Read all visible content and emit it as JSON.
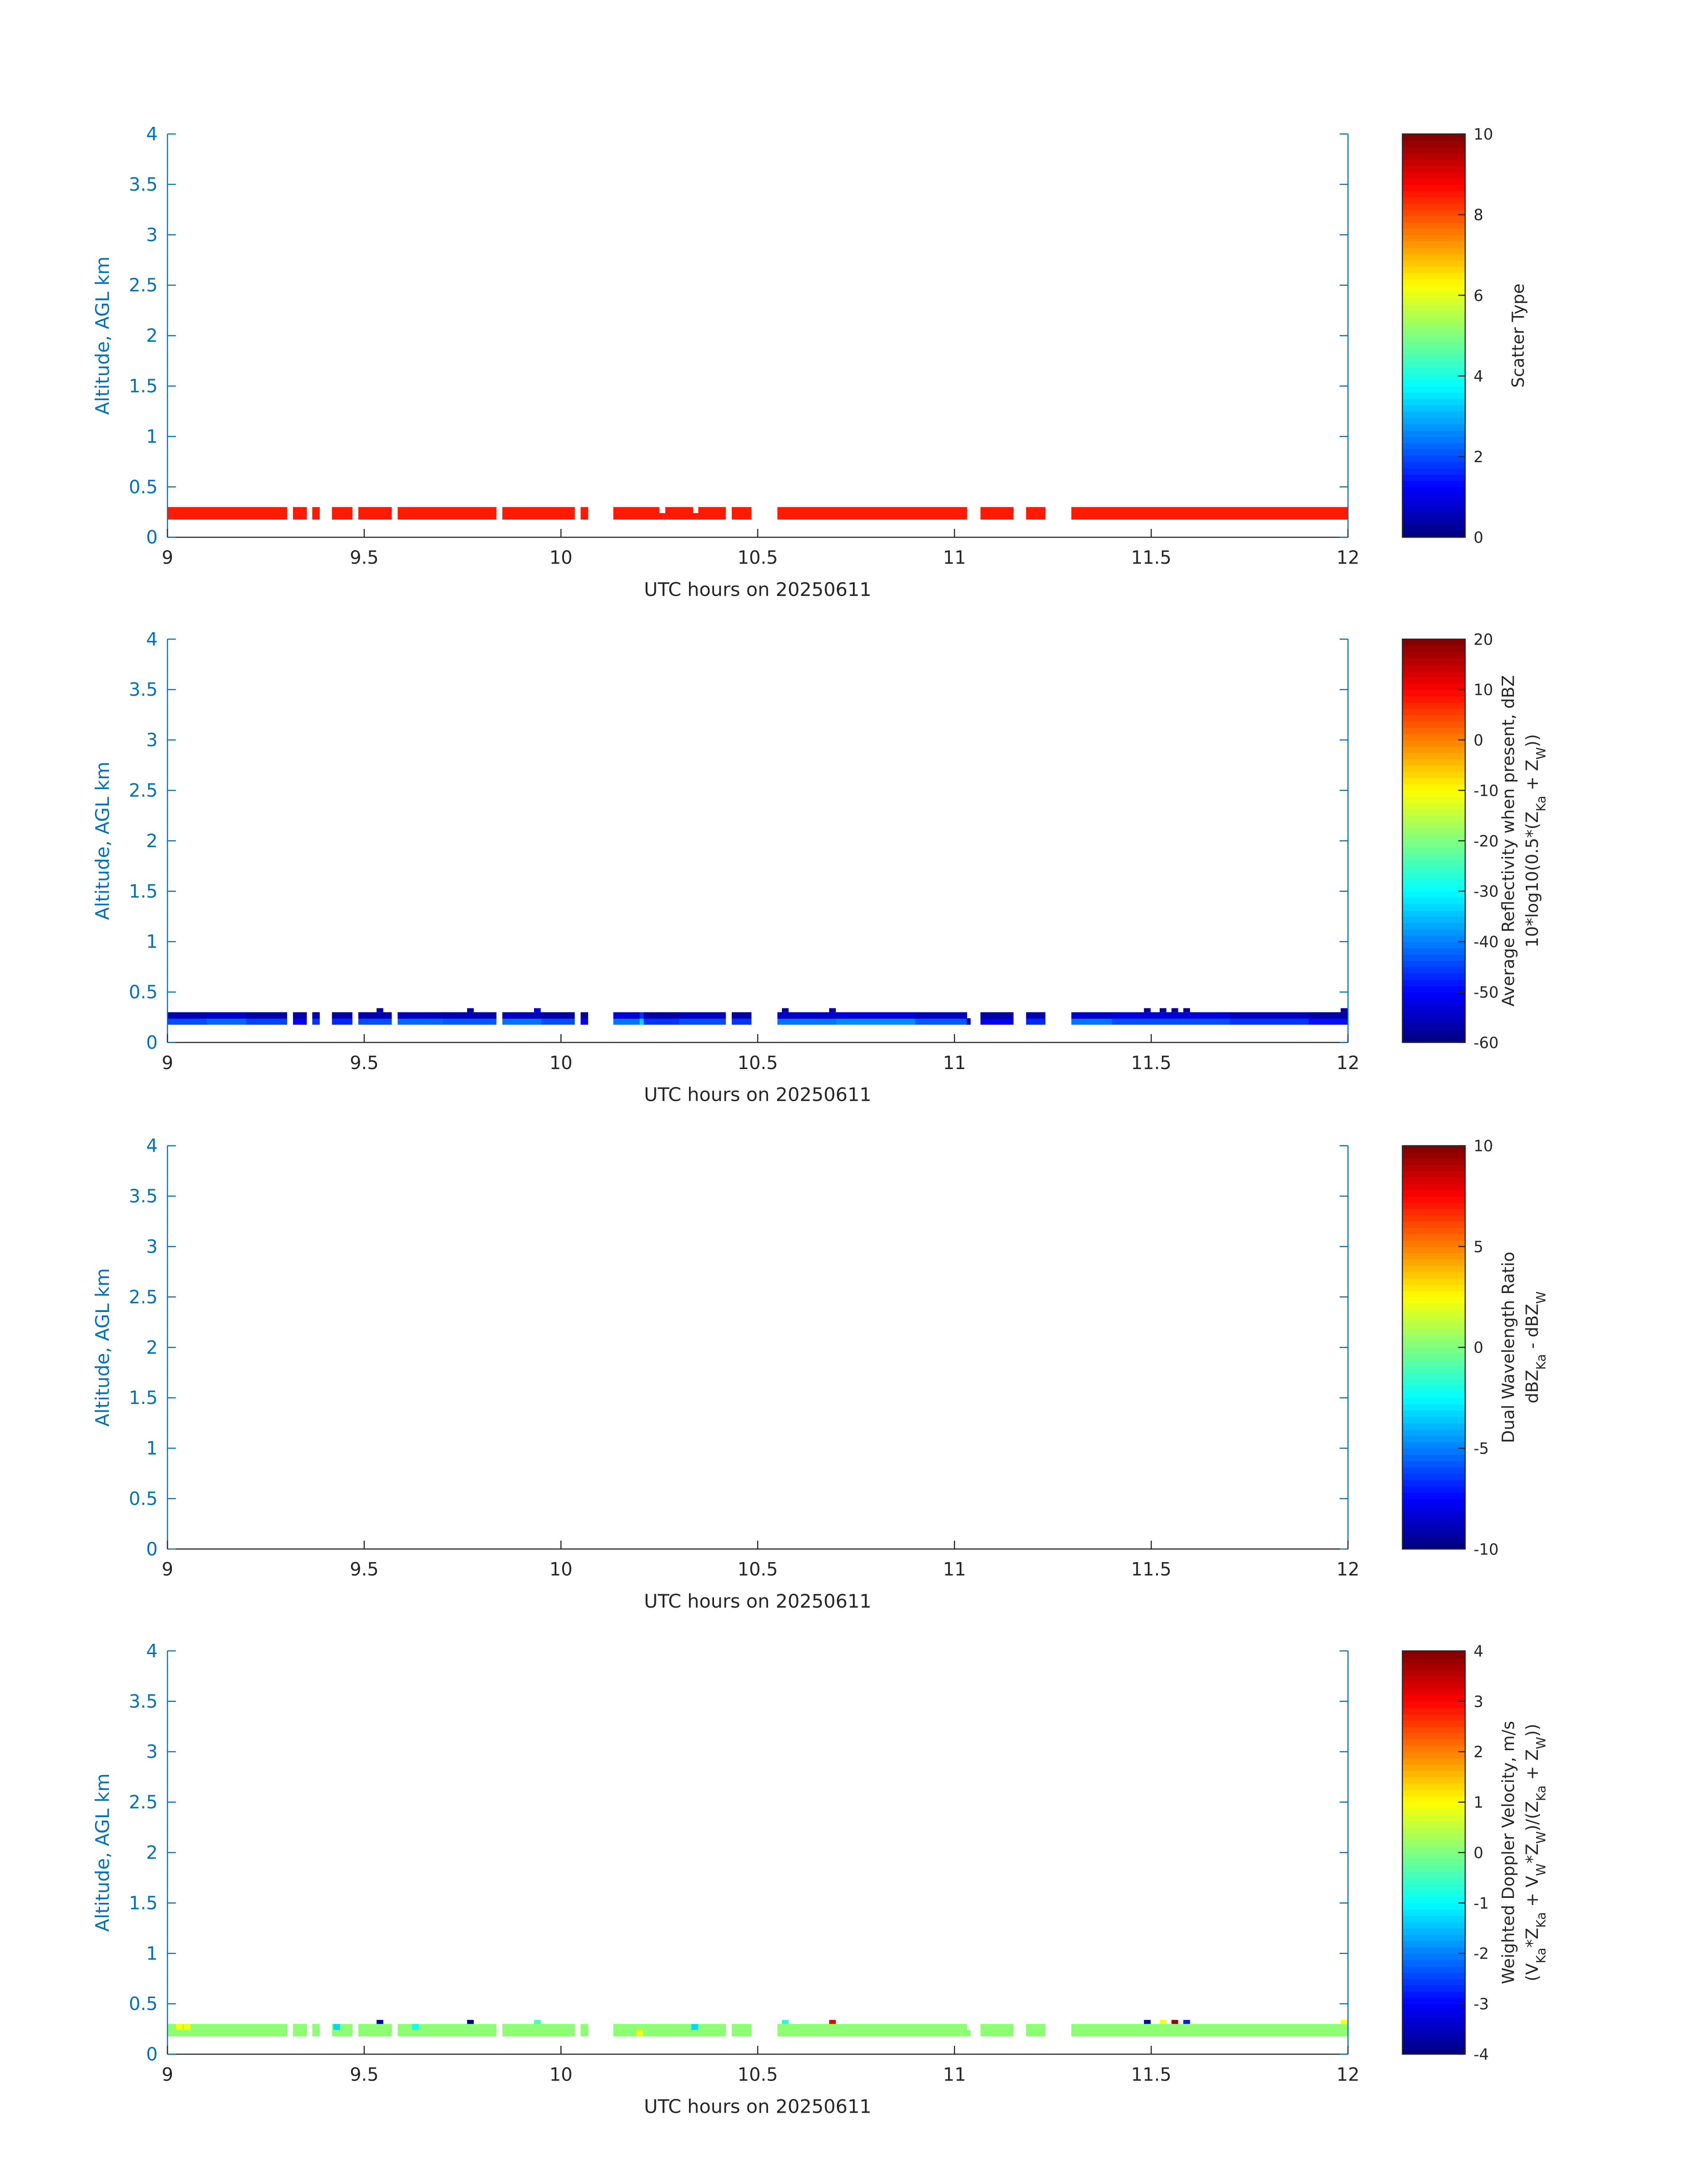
{
  "colors": {
    "y_axis": "#0072bd",
    "x_axis": "#262626"
  },
  "chart_data": [
    {
      "type": "heatmap",
      "title": "",
      "xlabel": "UTC hours on 20250611",
      "ylabel": "Altitude, AGL km",
      "xlim": [
        9,
        12
      ],
      "ylim": [
        0,
        4
      ],
      "xticks": [
        "9",
        "9.5",
        "10",
        "10.5",
        "11",
        "11.5",
        "12"
      ],
      "yticks": [
        "0",
        "0.5",
        "1",
        "1.5",
        "2",
        "2.5",
        "3",
        "3.5",
        "4"
      ],
      "altitude_bins_km": [
        [
          0.18,
          0.24
        ],
        [
          0.24,
          0.3
        ],
        [
          0.3,
          0.34
        ]
      ],
      "colorbar": {
        "clim": [
          0,
          10
        ],
        "ticks": [
          "0",
          "2",
          "4",
          "6",
          "8",
          "10"
        ],
        "label_lines": [
          [
            {
              "t": "Scatter Type"
            }
          ]
        ]
      },
      "segments": [
        [
          9.0,
          9.303,
          8.5,
          8.5
        ],
        [
          9.319,
          9.353,
          8.5,
          8.5
        ],
        [
          9.368,
          9.386,
          8.5,
          8.5
        ],
        [
          9.418,
          9.469,
          8.5,
          8.5
        ],
        [
          9.485,
          9.569,
          8.5,
          8.5
        ],
        [
          9.585,
          9.835,
          8.5,
          8.5
        ],
        [
          9.851,
          10.034,
          8.5,
          8.5
        ],
        [
          10.05,
          10.068,
          8.5,
          8.5
        ],
        [
          10.133,
          10.249,
          8.5,
          8.5
        ],
        [
          10.249,
          10.265,
          8.5,
          null
        ],
        [
          10.265,
          10.335,
          8.5,
          8.5
        ],
        [
          10.335,
          10.349,
          8.5,
          null
        ],
        [
          10.349,
          10.418,
          8.5,
          8.5
        ],
        [
          10.434,
          10.483,
          8.5,
          8.5
        ],
        [
          10.55,
          11.031,
          8.5,
          8.5
        ],
        [
          11.066,
          11.149,
          8.5,
          8.5
        ],
        [
          11.182,
          11.23,
          8.5,
          8.5
        ],
        [
          11.297,
          12.0,
          8.5,
          8.5
        ]
      ],
      "points": []
    },
    {
      "type": "heatmap",
      "xlabel": "UTC hours on 20250611",
      "ylabel": "Altitude, AGL km",
      "xlim": [
        9,
        12
      ],
      "ylim": [
        0,
        4
      ],
      "xticks": [
        "9",
        "9.5",
        "10",
        "10.5",
        "11",
        "11.5",
        "12"
      ],
      "yticks": [
        "0",
        "0.5",
        "1",
        "1.5",
        "2",
        "2.5",
        "3",
        "3.5",
        "4"
      ],
      "altitude_bins_km": [
        [
          0.18,
          0.24
        ],
        [
          0.24,
          0.3
        ],
        [
          0.3,
          0.34
        ]
      ],
      "colorbar": {
        "clim": [
          -60,
          20
        ],
        "ticks": [
          "-60",
          "-50",
          "-40",
          "-30",
          "-20",
          "-10",
          "0",
          "10",
          "20"
        ],
        "label_lines": [
          [
            {
              "t": "Average Reflectivity when present, dBZ"
            }
          ],
          [
            {
              "t": "10*log10(0.5*(Z"
            },
            {
              "t": "Ka",
              "sub": true
            },
            {
              "t": " + Z"
            },
            {
              "t": "W",
              "sub": true
            },
            {
              "t": "))"
            }
          ]
        ]
      },
      "segments": [
        [
          9.0,
          9.1,
          -44,
          -56
        ],
        [
          9.1,
          9.2,
          -42,
          -54
        ],
        [
          9.2,
          9.303,
          -45,
          -57
        ],
        [
          9.319,
          9.353,
          -50,
          -57
        ],
        [
          9.368,
          9.386,
          -46,
          -56
        ],
        [
          9.418,
          9.469,
          -47,
          -57
        ],
        [
          9.485,
          9.569,
          -44,
          -56
        ],
        [
          9.585,
          9.7,
          -42,
          -55
        ],
        [
          9.7,
          9.835,
          -43,
          -56
        ],
        [
          9.851,
          9.95,
          -41,
          -55
        ],
        [
          9.95,
          10.034,
          -44,
          -57
        ],
        [
          10.05,
          10.068,
          -50,
          -58
        ],
        [
          10.133,
          10.2,
          -41,
          -53
        ],
        [
          10.2,
          10.21,
          -33,
          -46
        ],
        [
          10.21,
          10.3,
          -46,
          -57
        ],
        [
          10.3,
          10.418,
          -44,
          -55
        ],
        [
          10.434,
          10.483,
          -46,
          -57
        ],
        [
          10.55,
          10.7,
          -41,
          -54
        ],
        [
          10.7,
          10.9,
          -39,
          -53
        ],
        [
          10.9,
          11.031,
          -43,
          -55
        ],
        [
          11.031,
          11.04,
          -56,
          null
        ],
        [
          11.066,
          11.149,
          -51,
          -57
        ],
        [
          11.182,
          11.23,
          -47,
          -56
        ],
        [
          11.297,
          11.4,
          -41,
          -54
        ],
        [
          11.4,
          11.7,
          -44,
          -53
        ],
        [
          11.7,
          11.9,
          -46,
          -55
        ],
        [
          11.9,
          12.0,
          -49,
          -57
        ]
      ],
      "points": [
        [
          9.54,
          2,
          -57
        ],
        [
          9.77,
          2,
          -57
        ],
        [
          9.94,
          2,
          -53
        ],
        [
          10.57,
          2,
          -58
        ],
        [
          10.69,
          2,
          -57
        ],
        [
          11.49,
          2,
          -58
        ],
        [
          11.53,
          2,
          -58
        ],
        [
          11.56,
          2,
          -58
        ],
        [
          11.59,
          2,
          -58
        ],
        [
          11.99,
          2,
          -58
        ]
      ]
    },
    {
      "type": "heatmap",
      "xlabel": "UTC hours on 20250611",
      "ylabel": "Altitude, AGL km",
      "xlim": [
        9,
        12
      ],
      "ylim": [
        0,
        4
      ],
      "xticks": [
        "9",
        "9.5",
        "10",
        "10.5",
        "11",
        "11.5",
        "12"
      ],
      "yticks": [
        "0",
        "0.5",
        "1",
        "1.5",
        "2",
        "2.5",
        "3",
        "3.5",
        "4"
      ],
      "altitude_bins_km": [
        [
          0.18,
          0.24
        ],
        [
          0.24,
          0.3
        ],
        [
          0.3,
          0.34
        ]
      ],
      "colorbar": {
        "clim": [
          -10,
          10
        ],
        "ticks": [
          "-10",
          "-5",
          "0",
          "5",
          "10"
        ],
        "label_lines": [
          [
            {
              "t": "Dual Wavelength Ratio"
            }
          ],
          [
            {
              "t": "dBZ"
            },
            {
              "t": "Ka",
              "sub": true
            },
            {
              "t": " - dBZ"
            },
            {
              "t": "W",
              "sub": true
            }
          ]
        ]
      },
      "segments": [],
      "points": []
    },
    {
      "type": "heatmap",
      "xlabel": "UTC hours on 20250611",
      "ylabel": "Altitude, AGL km",
      "xlim": [
        9,
        12
      ],
      "ylim": [
        0,
        4
      ],
      "xticks": [
        "9",
        "9.5",
        "10",
        "10.5",
        "11",
        "11.5",
        "12"
      ],
      "yticks": [
        "0",
        "0.5",
        "1",
        "1.5",
        "2",
        "2.5",
        "3",
        "3.5",
        "4"
      ],
      "altitude_bins_km": [
        [
          0.18,
          0.24
        ],
        [
          0.24,
          0.3
        ],
        [
          0.3,
          0.34
        ]
      ],
      "colorbar": {
        "clim": [
          -4,
          4
        ],
        "ticks": [
          "-4",
          "-3",
          "-2",
          "-1",
          "0",
          "1",
          "2",
          "3",
          "4"
        ],
        "label_lines": [
          [
            {
              "t": "Weighted Doppler Velocity, m/s"
            }
          ],
          [
            {
              "t": "(V"
            },
            {
              "t": "Ka",
              "sub": true
            },
            {
              "t": "*Z"
            },
            {
              "t": "Ka",
              "sub": true
            },
            {
              "t": " + V"
            },
            {
              "t": "W",
              "sub": true
            },
            {
              "t": "*Z"
            },
            {
              "t": "W",
              "sub": true
            },
            {
              "t": ")/(Z"
            },
            {
              "t": "Ka",
              "sub": true
            },
            {
              "t": " + Z"
            },
            {
              "t": "W",
              "sub": true
            },
            {
              "t": "))"
            }
          ]
        ]
      },
      "segments": [
        [
          9.0,
          9.303,
          0.1,
          0.1
        ],
        [
          9.319,
          9.353,
          0.1,
          0.1
        ],
        [
          9.368,
          9.386,
          0.1,
          0.1
        ],
        [
          9.418,
          9.469,
          0.1,
          0.1
        ],
        [
          9.485,
          9.569,
          0.1,
          0.1
        ],
        [
          9.585,
          9.835,
          0.1,
          0.1
        ],
        [
          9.851,
          10.034,
          0.1,
          0.1
        ],
        [
          10.05,
          10.068,
          0.1,
          0.1
        ],
        [
          10.133,
          10.418,
          0.1,
          0.1
        ],
        [
          10.434,
          10.483,
          0.1,
          0.1
        ],
        [
          10.55,
          11.031,
          0.1,
          0.1
        ],
        [
          11.031,
          11.04,
          0.1,
          null
        ],
        [
          11.066,
          11.149,
          0.1,
          0.1
        ],
        [
          11.182,
          11.23,
          0.1,
          0.1
        ],
        [
          11.297,
          12.0,
          0.1,
          0.1
        ]
      ],
      "points": [
        [
          9.03,
          1,
          0.9
        ],
        [
          9.05,
          1,
          0.9
        ],
        [
          9.43,
          1,
          -1.3
        ],
        [
          9.54,
          2,
          -3.5
        ],
        [
          9.63,
          1,
          -0.9
        ],
        [
          9.77,
          2,
          -3.8
        ],
        [
          9.94,
          2,
          -0.5
        ],
        [
          10.2,
          0,
          0.9
        ],
        [
          10.34,
          1,
          -1.3
        ],
        [
          10.57,
          2,
          -0.8
        ],
        [
          10.69,
          2,
          3.2
        ],
        [
          11.49,
          2,
          -3.6
        ],
        [
          11.53,
          2,
          1.0
        ],
        [
          11.56,
          2,
          3.8
        ],
        [
          11.59,
          2,
          -2.8
        ],
        [
          11.99,
          2,
          1.0
        ]
      ]
    }
  ]
}
